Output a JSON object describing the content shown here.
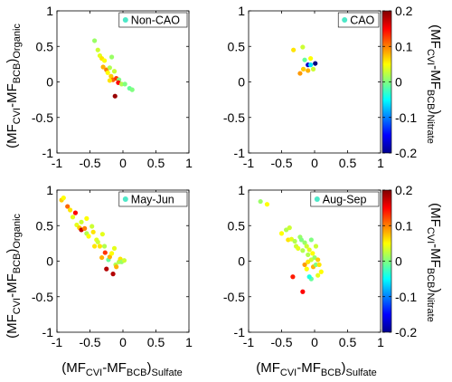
{
  "figure": {
    "ylabel": {
      "main": "(MF",
      "s1": "CVI",
      "m1": "-MF",
      "s2": "BCB",
      "m2": ")",
      "s3": "Organic"
    },
    "xlabel": {
      "main": "(MF",
      "s1": "CVI",
      "m1": "-MF",
      "s2": "BCB",
      "m2": ")",
      "s3": "Sulfate"
    },
    "colorbar_label": {
      "main": "(MF",
      "s1": "CVI",
      "m1": "-MF",
      "s2": "BCB",
      "m2": ")",
      "s3": "Nitrate"
    },
    "colorbar_ticks": [
      "0.2",
      "0.1",
      "0",
      "-0.1",
      "-0.2"
    ],
    "x_ticks": [
      "-1",
      "-0.5",
      "0",
      "0.5",
      "1"
    ],
    "y_ticks": [
      "1",
      "0.5",
      "0",
      "-0.5",
      "-1"
    ]
  },
  "chart_data": [
    {
      "type": "scatter",
      "legend": "Non-CAO",
      "legend_placement": "top-right",
      "xlim": [
        -1,
        1
      ],
      "ylim": [
        -1,
        1
      ],
      "color_range": [
        -0.2,
        0.2
      ],
      "points": [
        {
          "x": -0.43,
          "y": 0.58,
          "c": 0.01
        },
        {
          "x": -0.38,
          "y": 0.45,
          "c": 0.03
        },
        {
          "x": -0.35,
          "y": 0.37,
          "c": 0.04
        },
        {
          "x": -0.32,
          "y": 0.33,
          "c": 0.06
        },
        {
          "x": -0.3,
          "y": 0.21,
          "c": 0.08
        },
        {
          "x": -0.28,
          "y": 0.3,
          "c": 0.05
        },
        {
          "x": -0.25,
          "y": 0.17,
          "c": 0.1
        },
        {
          "x": -0.23,
          "y": 0.13,
          "c": 0.05
        },
        {
          "x": -0.2,
          "y": 0.2,
          "c": 0.02
        },
        {
          "x": -0.18,
          "y": 0.08,
          "c": 0.07
        },
        {
          "x": -0.15,
          "y": 0.03,
          "c": 0.11
        },
        {
          "x": -0.2,
          "y": 0.02,
          "c": 0.06
        },
        {
          "x": -0.13,
          "y": 0.15,
          "c": 0.03
        },
        {
          "x": -0.1,
          "y": 0.05,
          "c": 0.13
        },
        {
          "x": -0.06,
          "y": 0.03,
          "c": 0.0
        },
        {
          "x": -0.07,
          "y": -0.01,
          "c": 0.15
        },
        {
          "x": -0.12,
          "y": -0.2,
          "c": 0.19
        },
        {
          "x": -0.02,
          "y": -0.03,
          "c": 0.02
        },
        {
          "x": 0.03,
          "y": -0.03,
          "c": 0.0
        },
        {
          "x": 0.1,
          "y": -0.09,
          "c": -0.01
        },
        {
          "x": 0.14,
          "y": -0.11,
          "c": 0.0
        },
        {
          "x": -0.17,
          "y": 0.35,
          "c": 0.01
        }
      ]
    },
    {
      "type": "scatter",
      "legend": "CAO",
      "legend_placement": "top-right",
      "xlim": [
        -1,
        1
      ],
      "ylim": [
        -1,
        1
      ],
      "color_range": [
        -0.2,
        0.2
      ],
      "points": [
        {
          "x": -0.32,
          "y": 0.45,
          "c": 0.06
        },
        {
          "x": -0.18,
          "y": 0.49,
          "c": 0.03
        },
        {
          "x": -0.15,
          "y": 0.31,
          "c": -0.01
        },
        {
          "x": -0.22,
          "y": 0.12,
          "c": 0.09
        },
        {
          "x": -0.17,
          "y": 0.18,
          "c": 0.07
        },
        {
          "x": -0.1,
          "y": 0.16,
          "c": 0.08
        },
        {
          "x": -0.06,
          "y": 0.33,
          "c": 0.05
        },
        {
          "x": -0.1,
          "y": 0.24,
          "c": -0.17
        },
        {
          "x": -0.06,
          "y": 0.24,
          "c": -0.06
        },
        {
          "x": -0.02,
          "y": 0.18,
          "c": 0.03
        },
        {
          "x": 0.01,
          "y": 0.26,
          "c": -0.2
        }
      ]
    },
    {
      "type": "scatter",
      "legend": "May-Jun",
      "legend_placement": "top-right",
      "xlim": [
        -1,
        1
      ],
      "ylim": [
        -1,
        1
      ],
      "color_range": [
        -0.2,
        0.2
      ],
      "points": [
        {
          "x": -0.93,
          "y": 0.86,
          "c": 0.07
        },
        {
          "x": -0.9,
          "y": 0.89,
          "c": 0.05
        },
        {
          "x": -0.84,
          "y": 0.77,
          "c": 0.11
        },
        {
          "x": -0.8,
          "y": 0.72,
          "c": 0.06
        },
        {
          "x": -0.76,
          "y": 0.62,
          "c": 0.04
        },
        {
          "x": -0.72,
          "y": 0.68,
          "c": 0.15
        },
        {
          "x": -0.7,
          "y": 0.51,
          "c": 0.04
        },
        {
          "x": -0.66,
          "y": 0.47,
          "c": 0.07
        },
        {
          "x": -0.63,
          "y": 0.55,
          "c": 0.03
        },
        {
          "x": -0.63,
          "y": 0.44,
          "c": 0.17
        },
        {
          "x": -0.58,
          "y": 0.46,
          "c": 0.1
        },
        {
          "x": -0.55,
          "y": 0.6,
          "c": 0.05
        },
        {
          "x": -0.55,
          "y": 0.39,
          "c": 0.02
        },
        {
          "x": -0.52,
          "y": 0.35,
          "c": 0.05
        },
        {
          "x": -0.47,
          "y": 0.49,
          "c": 0.03
        },
        {
          "x": -0.45,
          "y": 0.41,
          "c": 0.06
        },
        {
          "x": -0.43,
          "y": 0.21,
          "c": 0.06
        },
        {
          "x": -0.4,
          "y": 0.3,
          "c": 0.04
        },
        {
          "x": -0.38,
          "y": 0.27,
          "c": 0.03
        },
        {
          "x": -0.35,
          "y": 0.21,
          "c": 0.06
        },
        {
          "x": -0.32,
          "y": 0.05,
          "c": 0.08
        },
        {
          "x": -0.31,
          "y": 0.38,
          "c": 0.04
        },
        {
          "x": -0.28,
          "y": 0.21,
          "c": 0.02
        },
        {
          "x": -0.27,
          "y": 0.12,
          "c": 0.13
        },
        {
          "x": -0.25,
          "y": -0.11,
          "c": 0.18
        },
        {
          "x": -0.22,
          "y": 0.02,
          "c": -0.01
        },
        {
          "x": -0.2,
          "y": 0.06,
          "c": 0.08
        },
        {
          "x": -0.17,
          "y": 0.11,
          "c": 0.05
        },
        {
          "x": -0.15,
          "y": -0.18,
          "c": 0.18
        },
        {
          "x": -0.13,
          "y": 0.18,
          "c": 0.04
        },
        {
          "x": -0.11,
          "y": -0.05,
          "c": 0.02
        },
        {
          "x": -0.1,
          "y": -0.08,
          "c": 0.08
        },
        {
          "x": -0.06,
          "y": -0.01,
          "c": 0.02
        },
        {
          "x": -0.04,
          "y": 0.03,
          "c": 0.06
        },
        {
          "x": -0.02,
          "y": -0.01,
          "c": 0.01
        },
        {
          "x": 0.02,
          "y": 0.01,
          "c": 0.03
        }
      ]
    },
    {
      "type": "scatter",
      "legend": "Aug-Sep",
      "legend_placement": "top-right",
      "xlim": [
        -1,
        1
      ],
      "ylim": [
        -1,
        1
      ],
      "color_range": [
        -0.2,
        0.2
      ],
      "points": [
        {
          "x": -0.82,
          "y": 0.84,
          "c": 0.01
        },
        {
          "x": -0.72,
          "y": 0.8,
          "c": 0.05
        },
        {
          "x": -0.5,
          "y": 0.39,
          "c": 0.05
        },
        {
          "x": -0.43,
          "y": 0.44,
          "c": 0.02
        },
        {
          "x": -0.38,
          "y": 0.47,
          "c": 0.03
        },
        {
          "x": -0.4,
          "y": 0.3,
          "c": 0.06
        },
        {
          "x": -0.35,
          "y": 0.31,
          "c": 0.04
        },
        {
          "x": -0.3,
          "y": 0.28,
          "c": 0.02
        },
        {
          "x": -0.28,
          "y": 0.21,
          "c": 0.03
        },
        {
          "x": -0.25,
          "y": 0.18,
          "c": 0.04
        },
        {
          "x": -0.22,
          "y": 0.34,
          "c": 0.01
        },
        {
          "x": -0.2,
          "y": 0.3,
          "c": 0.0
        },
        {
          "x": -0.18,
          "y": 0.15,
          "c": 0.02
        },
        {
          "x": -0.15,
          "y": 0.26,
          "c": 0.01
        },
        {
          "x": -0.12,
          "y": 0.21,
          "c": 0.03
        },
        {
          "x": -0.1,
          "y": 0.09,
          "c": 0.02
        },
        {
          "x": -0.08,
          "y": 0.16,
          "c": 0.04
        },
        {
          "x": -0.05,
          "y": 0.3,
          "c": 0.0
        },
        {
          "x": -0.03,
          "y": 0.11,
          "c": 0.05
        },
        {
          "x": -0.05,
          "y": 0.02,
          "c": 0.03
        },
        {
          "x": 0.0,
          "y": 0.05,
          "c": 0.01
        },
        {
          "x": 0.02,
          "y": 0.21,
          "c": 0.03
        },
        {
          "x": 0.05,
          "y": 0.02,
          "c": 0.07
        },
        {
          "x": -0.15,
          "y": -0.05,
          "c": 0.09
        },
        {
          "x": -0.1,
          "y": -0.01,
          "c": 0.06
        },
        {
          "x": -0.12,
          "y": -0.11,
          "c": 0.05
        },
        {
          "x": -0.02,
          "y": -0.08,
          "c": 0.08
        },
        {
          "x": 0.02,
          "y": -0.05,
          "c": 0.0
        },
        {
          "x": 0.07,
          "y": -0.05,
          "c": 0.06
        },
        {
          "x": -0.05,
          "y": -0.25,
          "c": -0.01
        },
        {
          "x": -0.08,
          "y": -0.22,
          "c": -0.04
        },
        {
          "x": 0.05,
          "y": -0.2,
          "c": 0.04
        },
        {
          "x": 0.1,
          "y": -0.15,
          "c": 0.05
        },
        {
          "x": -0.18,
          "y": -0.43,
          "c": 0.15
        },
        {
          "x": -0.33,
          "y": -0.22,
          "c": 0.14
        }
      ]
    }
  ]
}
